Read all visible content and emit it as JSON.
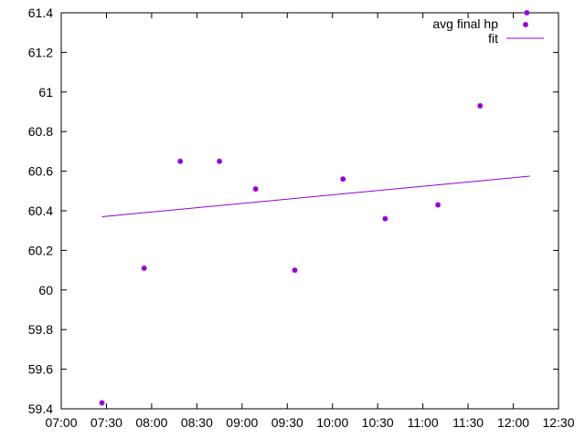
{
  "chart_data": {
    "type": "scatter",
    "title": "",
    "xlabel": "",
    "ylabel": "",
    "xlim": [
      "07:00",
      "12:30"
    ],
    "ylim": [
      59.4,
      61.4
    ],
    "x_ticks": [
      "07:00",
      "07:30",
      "08:00",
      "08:30",
      "09:00",
      "09:30",
      "10:00",
      "10:30",
      "11:00",
      "11:30",
      "12:00",
      "12:30"
    ],
    "y_ticks": [
      "59.4",
      "59.6",
      "59.8",
      "60",
      "60.2",
      "60.4",
      "60.6",
      "60.8",
      "61",
      "61.2",
      "61.4"
    ],
    "grid": false,
    "legend_position": "top-right",
    "series": [
      {
        "name": "avg final hp",
        "kind": "points",
        "color": "#9400d3",
        "x": [
          "07:27",
          "07:55",
          "08:19",
          "08:45",
          "09:09",
          "09:35",
          "10:07",
          "10:35",
          "11:10",
          "11:38",
          "12:09"
        ],
        "y": [
          59.43,
          60.11,
          60.65,
          60.65,
          60.51,
          60.1,
          60.56,
          60.36,
          60.43,
          60.93,
          61.4
        ]
      },
      {
        "name": "fit",
        "kind": "line",
        "color": "#9400d3",
        "x": [
          "07:27",
          "12:11"
        ],
        "y": [
          60.37,
          60.575
        ]
      }
    ]
  }
}
